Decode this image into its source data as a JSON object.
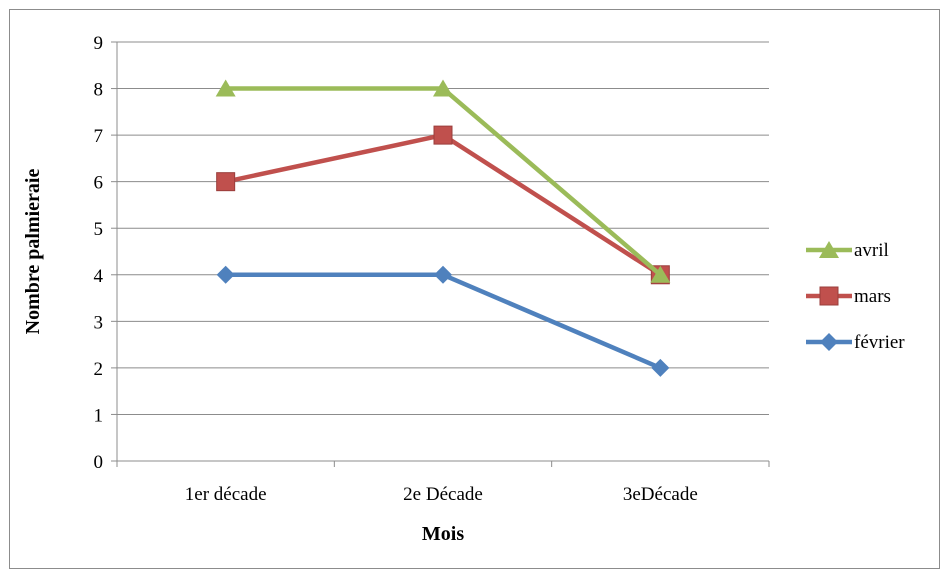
{
  "chart_data": {
    "type": "line",
    "title": "",
    "xlabel": "Mois",
    "ylabel": "Nombre  palmieraie",
    "categories": [
      "1er décade",
      "2e Décade",
      "3eDécade"
    ],
    "ylim": [
      0,
      9
    ],
    "yticks": [
      "0",
      "1",
      "2",
      "3",
      "4",
      "5",
      "6",
      "7",
      "8",
      "9"
    ],
    "grid": true,
    "legend_position": "right",
    "series": [
      {
        "name": "avril",
        "values": [
          8,
          8,
          4
        ],
        "color": "#9bbb59",
        "marker": "triangle"
      },
      {
        "name": "mars",
        "values": [
          6,
          7,
          4
        ],
        "color": "#c0504d",
        "marker": "square"
      },
      {
        "name": "février",
        "values": [
          4,
          4,
          2
        ],
        "color": "#4f81bd",
        "marker": "diamond"
      }
    ]
  }
}
